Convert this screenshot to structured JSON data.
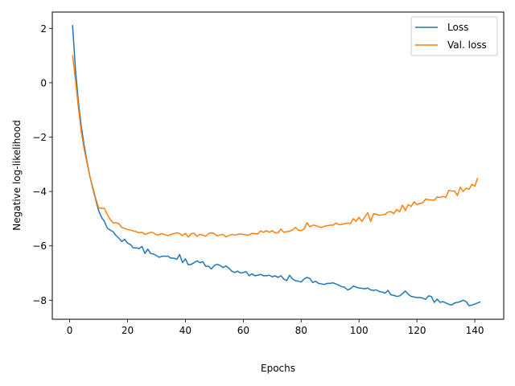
{
  "chart_data": {
    "type": "line",
    "title": "",
    "xlabel": "Epochs",
    "ylabel": "Negative log-likelihood",
    "xlim": [
      -6.0,
      150.0
    ],
    "ylim": [
      -8.7,
      2.6
    ],
    "xticks": [
      0,
      20,
      40,
      60,
      80,
      100,
      120,
      140
    ],
    "yticks": [
      2,
      0,
      -2,
      -4,
      -6,
      -8
    ],
    "xtick_labels": [
      "0",
      "20",
      "40",
      "60",
      "80",
      "100",
      "120",
      "140"
    ],
    "ytick_labels": [
      "2",
      "0",
      "−2",
      "−4",
      "−6",
      "−8"
    ],
    "grid": false,
    "legend_position": "top-right",
    "series": [
      {
        "name": "Loss",
        "color": "#1f77b4",
        "points": [
          [
            1,
            2.12
          ],
          [
            2,
            0.5
          ],
          [
            3,
            -0.7
          ],
          [
            4,
            -1.6
          ],
          [
            5,
            -2.3
          ],
          [
            6,
            -2.9
          ],
          [
            7,
            -3.45
          ],
          [
            8,
            -3.9
          ],
          [
            9,
            -4.3
          ],
          [
            10,
            -4.7
          ],
          [
            11,
            -4.95
          ],
          [
            12,
            -5.1
          ],
          [
            13,
            -5.35
          ],
          [
            14,
            -5.42
          ],
          [
            15,
            -5.48
          ],
          [
            16,
            -5.62
          ],
          [
            17,
            -5.72
          ],
          [
            18,
            -5.84
          ],
          [
            19,
            -5.76
          ],
          [
            20,
            -5.9
          ],
          [
            21,
            -5.95
          ],
          [
            22,
            -6.08
          ],
          [
            23,
            -6.07
          ],
          [
            24,
            -6.1
          ],
          [
            25,
            -6.02
          ],
          [
            26,
            -6.28
          ],
          [
            27,
            -6.12
          ],
          [
            28,
            -6.28
          ],
          [
            29,
            -6.3
          ],
          [
            30,
            -6.36
          ],
          [
            31,
            -6.42
          ],
          [
            32,
            -6.38
          ],
          [
            33,
            -6.38
          ],
          [
            34,
            -6.38
          ],
          [
            35,
            -6.45
          ],
          [
            36,
            -6.45
          ],
          [
            37,
            -6.5
          ],
          [
            38,
            -6.32
          ],
          [
            39,
            -6.62
          ],
          [
            40,
            -6.48
          ],
          [
            41,
            -6.7
          ],
          [
            42,
            -6.68
          ],
          [
            43,
            -6.62
          ],
          [
            44,
            -6.55
          ],
          [
            45,
            -6.62
          ],
          [
            46,
            -6.58
          ],
          [
            47,
            -6.75
          ],
          [
            48,
            -6.75
          ],
          [
            49,
            -6.85
          ],
          [
            50,
            -6.72
          ],
          [
            51,
            -6.68
          ],
          [
            52,
            -6.72
          ],
          [
            53,
            -6.8
          ],
          [
            54,
            -6.74
          ],
          [
            55,
            -6.82
          ],
          [
            56,
            -6.93
          ],
          [
            57,
            -6.98
          ],
          [
            58,
            -6.93
          ],
          [
            59,
            -7.0
          ],
          [
            60,
            -6.98
          ],
          [
            61,
            -6.95
          ],
          [
            62,
            -7.1
          ],
          [
            63,
            -7.03
          ],
          [
            64,
            -7.1
          ],
          [
            65,
            -7.08
          ],
          [
            66,
            -7.05
          ],
          [
            67,
            -7.1
          ],
          [
            68,
            -7.1
          ],
          [
            69,
            -7.08
          ],
          [
            70,
            -7.14
          ],
          [
            71,
            -7.1
          ],
          [
            72,
            -7.16
          ],
          [
            73,
            -7.1
          ],
          [
            74,
            -7.22
          ],
          [
            75,
            -7.28
          ],
          [
            76,
            -7.08
          ],
          [
            77,
            -7.22
          ],
          [
            78,
            -7.28
          ],
          [
            79,
            -7.3
          ],
          [
            80,
            -7.33
          ],
          [
            81,
            -7.22
          ],
          [
            82,
            -7.16
          ],
          [
            83,
            -7.2
          ],
          [
            84,
            -7.35
          ],
          [
            85,
            -7.3
          ],
          [
            86,
            -7.38
          ],
          [
            87,
            -7.4
          ],
          [
            88,
            -7.42
          ],
          [
            89,
            -7.38
          ],
          [
            90,
            -7.38
          ],
          [
            91,
            -7.36
          ],
          [
            92,
            -7.4
          ],
          [
            93,
            -7.45
          ],
          [
            94,
            -7.5
          ],
          [
            95,
            -7.52
          ],
          [
            96,
            -7.62
          ],
          [
            97,
            -7.58
          ],
          [
            98,
            -7.48
          ],
          [
            99,
            -7.52
          ],
          [
            100,
            -7.55
          ],
          [
            101,
            -7.56
          ],
          [
            102,
            -7.58
          ],
          [
            103,
            -7.55
          ],
          [
            104,
            -7.62
          ],
          [
            105,
            -7.64
          ],
          [
            106,
            -7.62
          ],
          [
            107,
            -7.68
          ],
          [
            108,
            -7.7
          ],
          [
            109,
            -7.74
          ],
          [
            110,
            -7.64
          ],
          [
            111,
            -7.8
          ],
          [
            112,
            -7.82
          ],
          [
            113,
            -7.86
          ],
          [
            114,
            -7.84
          ],
          [
            115,
            -7.76
          ],
          [
            116,
            -7.66
          ],
          [
            117,
            -7.78
          ],
          [
            118,
            -7.86
          ],
          [
            119,
            -7.88
          ],
          [
            120,
            -7.9
          ],
          [
            121,
            -7.9
          ],
          [
            122,
            -7.92
          ],
          [
            123,
            -7.97
          ],
          [
            124,
            -7.84
          ],
          [
            125,
            -7.86
          ],
          [
            126,
            -8.08
          ],
          [
            127,
            -7.96
          ],
          [
            128,
            -8.08
          ],
          [
            129,
            -8.05
          ],
          [
            130,
            -8.1
          ],
          [
            131,
            -8.15
          ],
          [
            132,
            -8.18
          ],
          [
            133,
            -8.1
          ],
          [
            134,
            -8.08
          ],
          [
            135,
            -8.05
          ],
          [
            136,
            -8.0
          ],
          [
            137,
            -8.05
          ],
          [
            138,
            -8.2
          ],
          [
            139,
            -8.18
          ],
          [
            140,
            -8.14
          ],
          [
            141,
            -8.1
          ],
          [
            142,
            -8.06
          ]
        ]
      },
      {
        "name": "Val. loss",
        "color": "#ff7f0e",
        "points": [
          [
            1,
            1.02
          ],
          [
            2,
            0.1
          ],
          [
            3,
            -0.9
          ],
          [
            4,
            -1.8
          ],
          [
            5,
            -2.45
          ],
          [
            6,
            -2.95
          ],
          [
            7,
            -3.45
          ],
          [
            8,
            -3.85
          ],
          [
            9,
            -4.25
          ],
          [
            10,
            -4.6
          ],
          [
            11,
            -4.62
          ],
          [
            12,
            -4.62
          ],
          [
            13,
            -4.85
          ],
          [
            14,
            -5.02
          ],
          [
            15,
            -5.15
          ],
          [
            16,
            -5.15
          ],
          [
            17,
            -5.18
          ],
          [
            18,
            -5.32
          ],
          [
            19,
            -5.36
          ],
          [
            20,
            -5.4
          ],
          [
            21,
            -5.42
          ],
          [
            22,
            -5.45
          ],
          [
            23,
            -5.48
          ],
          [
            24,
            -5.52
          ],
          [
            25,
            -5.5
          ],
          [
            26,
            -5.58
          ],
          [
            27,
            -5.54
          ],
          [
            28,
            -5.5
          ],
          [
            29,
            -5.52
          ],
          [
            30,
            -5.6
          ],
          [
            31,
            -5.58
          ],
          [
            32,
            -5.55
          ],
          [
            33,
            -5.6
          ],
          [
            34,
            -5.62
          ],
          [
            35,
            -5.58
          ],
          [
            36,
            -5.55
          ],
          [
            37,
            -5.52
          ],
          [
            38,
            -5.55
          ],
          [
            39,
            -5.62
          ],
          [
            40,
            -5.54
          ],
          [
            41,
            -5.68
          ],
          [
            42,
            -5.55
          ],
          [
            43,
            -5.54
          ],
          [
            44,
            -5.65
          ],
          [
            45,
            -5.58
          ],
          [
            46,
            -5.6
          ],
          [
            47,
            -5.65
          ],
          [
            48,
            -5.55
          ],
          [
            49,
            -5.52
          ],
          [
            50,
            -5.55
          ],
          [
            51,
            -5.64
          ],
          [
            52,
            -5.6
          ],
          [
            53,
            -5.58
          ],
          [
            54,
            -5.67
          ],
          [
            55,
            -5.62
          ],
          [
            56,
            -5.58
          ],
          [
            57,
            -5.6
          ],
          [
            58,
            -5.58
          ],
          [
            59,
            -5.56
          ],
          [
            60,
            -5.58
          ],
          [
            61,
            -5.6
          ],
          [
            62,
            -5.6
          ],
          [
            63,
            -5.54
          ],
          [
            64,
            -5.55
          ],
          [
            65,
            -5.56
          ],
          [
            66,
            -5.45
          ],
          [
            67,
            -5.5
          ],
          [
            68,
            -5.44
          ],
          [
            69,
            -5.5
          ],
          [
            70,
            -5.44
          ],
          [
            71,
            -5.52
          ],
          [
            72,
            -5.52
          ],
          [
            73,
            -5.38
          ],
          [
            74,
            -5.5
          ],
          [
            75,
            -5.48
          ],
          [
            76,
            -5.46
          ],
          [
            77,
            -5.42
          ],
          [
            78,
            -5.32
          ],
          [
            79,
            -5.42
          ],
          [
            80,
            -5.44
          ],
          [
            81,
            -5.38
          ],
          [
            82,
            -5.15
          ],
          [
            83,
            -5.3
          ],
          [
            84,
            -5.24
          ],
          [
            85,
            -5.25
          ],
          [
            86,
            -5.3
          ],
          [
            87,
            -5.32
          ],
          [
            88,
            -5.28
          ],
          [
            89,
            -5.26
          ],
          [
            90,
            -5.24
          ],
          [
            91,
            -5.24
          ],
          [
            92,
            -5.16
          ],
          [
            93,
            -5.22
          ],
          [
            94,
            -5.22
          ],
          [
            95,
            -5.18
          ],
          [
            96,
            -5.16
          ],
          [
            97,
            -5.18
          ],
          [
            98,
            -5.0
          ],
          [
            99,
            -5.1
          ],
          [
            100,
            -4.95
          ],
          [
            101,
            -5.1
          ],
          [
            102,
            -4.94
          ],
          [
            103,
            -4.78
          ],
          [
            104,
            -5.1
          ],
          [
            105,
            -4.82
          ],
          [
            106,
            -4.84
          ],
          [
            107,
            -4.88
          ],
          [
            108,
            -4.86
          ],
          [
            109,
            -4.84
          ],
          [
            110,
            -4.76
          ],
          [
            111,
            -4.74
          ],
          [
            112,
            -4.82
          ],
          [
            113,
            -4.66
          ],
          [
            114,
            -4.75
          ],
          [
            115,
            -4.5
          ],
          [
            116,
            -4.7
          ],
          [
            117,
            -4.48
          ],
          [
            118,
            -4.55
          ],
          [
            119,
            -4.38
          ],
          [
            120,
            -4.48
          ],
          [
            121,
            -4.44
          ],
          [
            122,
            -4.42
          ],
          [
            123,
            -4.28
          ],
          [
            124,
            -4.3
          ],
          [
            125,
            -4.32
          ],
          [
            126,
            -4.32
          ],
          [
            127,
            -4.2
          ],
          [
            128,
            -4.22
          ],
          [
            129,
            -4.18
          ],
          [
            130,
            -4.22
          ],
          [
            131,
            -3.96
          ],
          [
            132,
            -3.98
          ],
          [
            133,
            -3.98
          ],
          [
            134,
            -4.15
          ],
          [
            135,
            -3.84
          ],
          [
            136,
            -4.0
          ],
          [
            137,
            -3.88
          ],
          [
            138,
            -3.92
          ],
          [
            139,
            -3.74
          ],
          [
            140,
            -3.8
          ],
          [
            141,
            -3.5
          ]
        ]
      }
    ]
  }
}
